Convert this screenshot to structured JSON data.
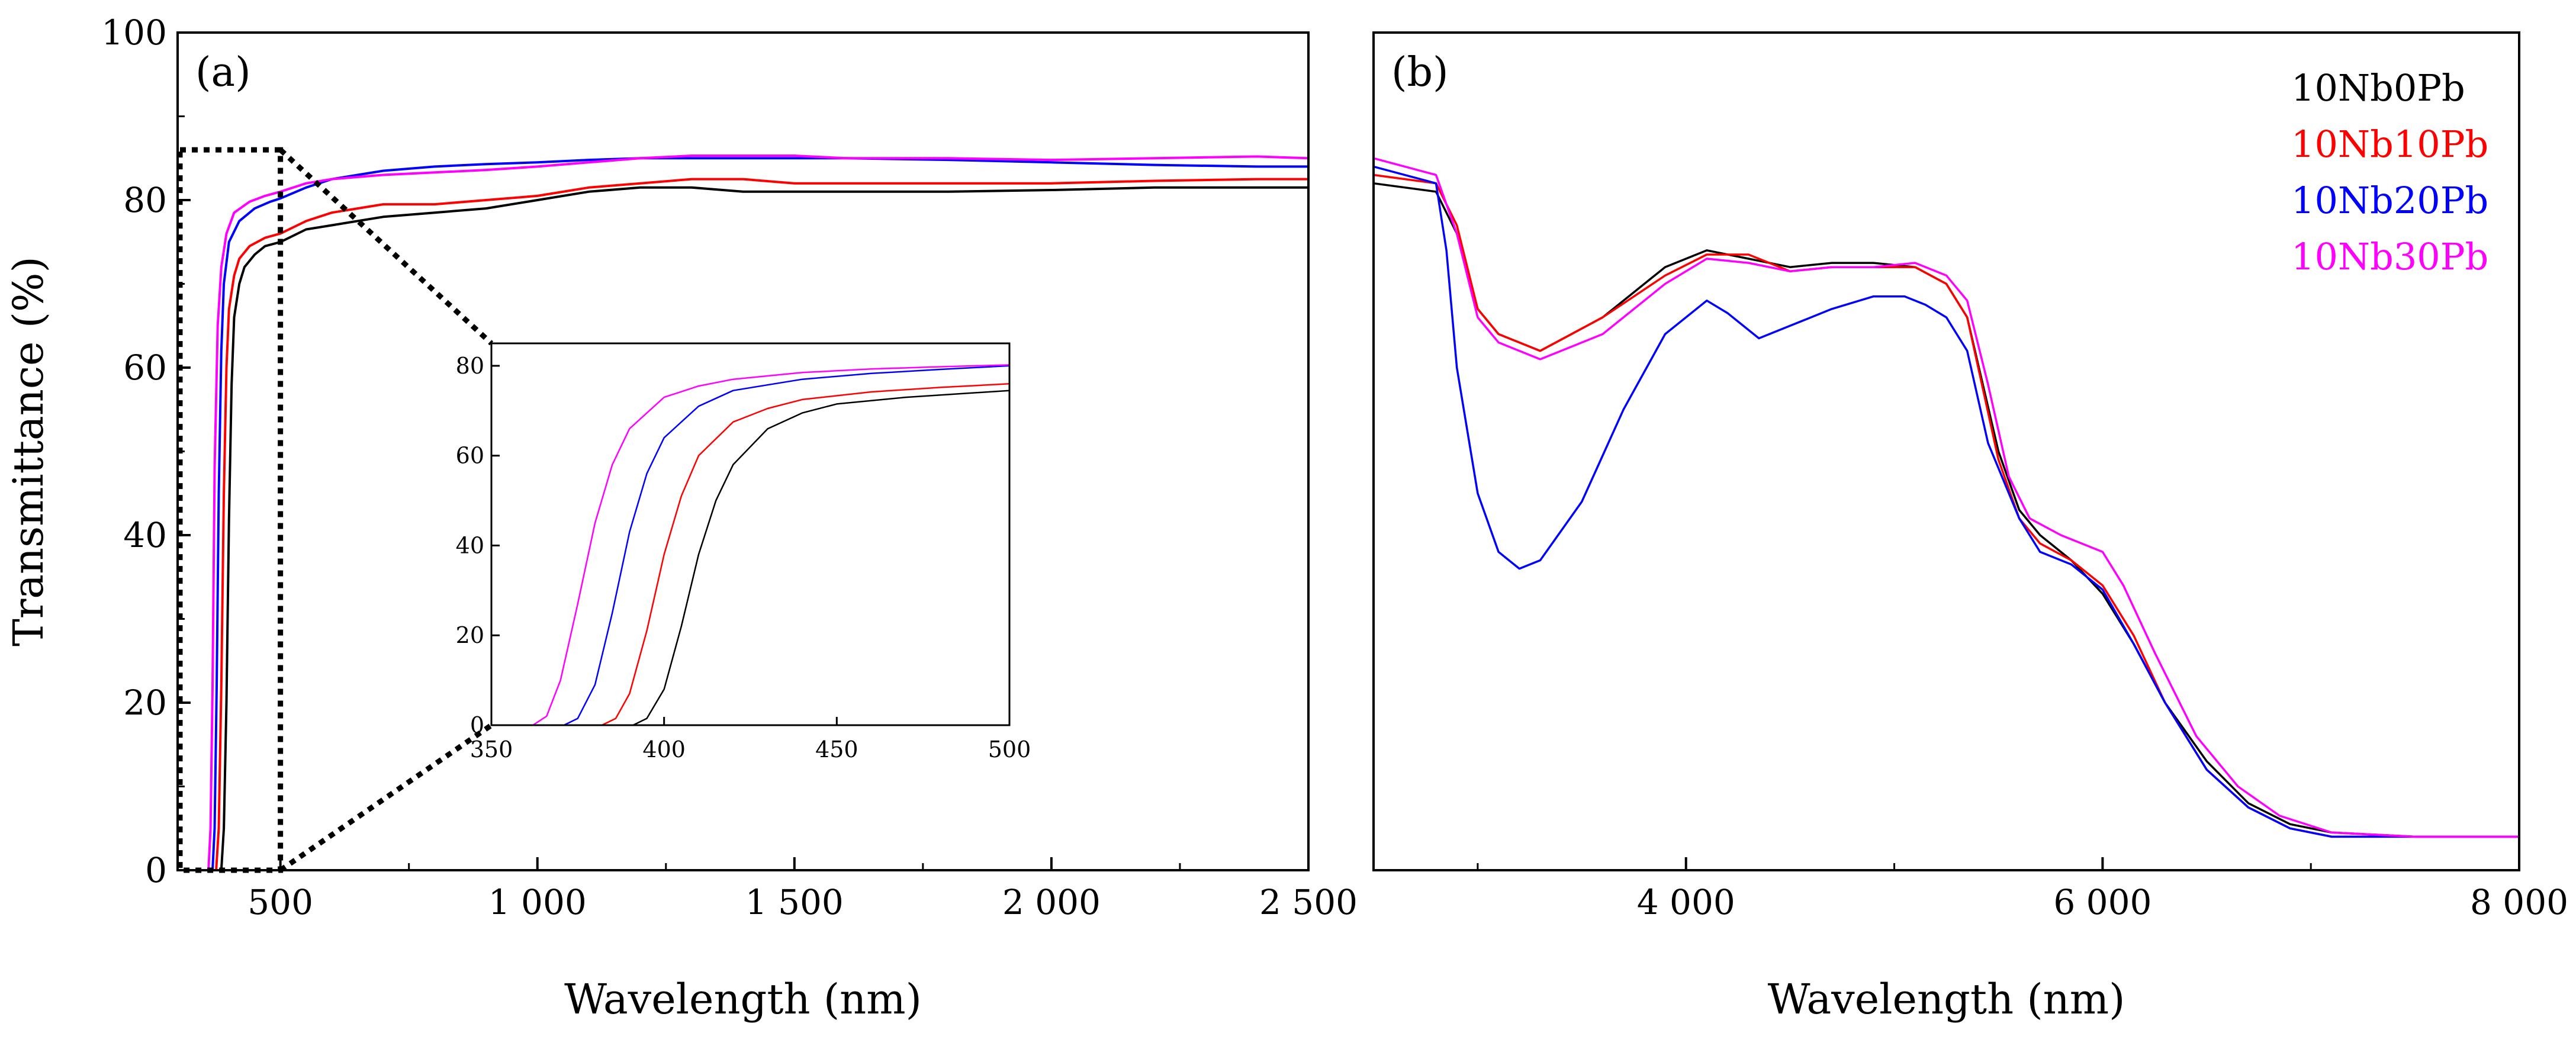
{
  "colors": {
    "10Nb0Pb": "#000000",
    "10Nb10Pb": "#ff0000",
    "10Nb20Pb": "#0000ff",
    "10Nb30Pb": "#ff00ff",
    "axis": "#000000"
  },
  "chart_data": [
    {
      "panel_label": "(a)",
      "type": "line",
      "xlabel": "Wavelength (nm)",
      "ylabel": "Transmittance (%)",
      "xlim": [
        300,
        2500
      ],
      "ylim": [
        0,
        100
      ],
      "x_ticks": [
        500,
        1000,
        1500,
        2000,
        2500
      ],
      "x_tick_labels": [
        "500",
        "1 000",
        "1 500",
        "2 000",
        "2 500"
      ],
      "y_ticks": [
        0,
        20,
        40,
        60,
        80,
        100
      ],
      "y_tick_labels": [
        "0",
        "20",
        "40",
        "60",
        "80",
        "100"
      ],
      "zoom_box": {
        "x": [
          300,
          500
        ],
        "y": [
          0,
          86
        ]
      },
      "series": [
        {
          "name": "10Nb0Pb",
          "color": "#000000",
          "x": [
            300,
            385,
            390,
            395,
            400,
            405,
            410,
            420,
            430,
            450,
            470,
            500,
            550,
            600,
            700,
            800,
            900,
            1000,
            1100,
            1200,
            1300,
            1400,
            1500,
            1600,
            1800,
            2000,
            2200,
            2400,
            2500
          ],
          "y": [
            0,
            0,
            5,
            20,
            42,
            58,
            66,
            70,
            72,
            73.5,
            74.5,
            75,
            76.5,
            77,
            78,
            78.5,
            79,
            80,
            81,
            81.5,
            81.5,
            81,
            81,
            81,
            81,
            81.2,
            81.5,
            81.5,
            81.5
          ]
        },
        {
          "name": "10Nb10Pb",
          "color": "#ff0000",
          "x": [
            300,
            375,
            380,
            385,
            390,
            395,
            400,
            410,
            420,
            440,
            470,
            500,
            550,
            600,
            700,
            800,
            900,
            1000,
            1100,
            1200,
            1300,
            1400,
            1500,
            1600,
            1800,
            2000,
            2200,
            2400,
            2500
          ],
          "y": [
            0,
            0,
            5,
            22,
            45,
            60,
            67,
            71,
            73,
            74.5,
            75.5,
            76,
            77.5,
            78.5,
            79.5,
            79.5,
            80,
            80.5,
            81.5,
            82,
            82.5,
            82.5,
            82,
            82,
            82,
            82,
            82.3,
            82.5,
            82.5
          ]
        },
        {
          "name": "10Nb20Pb",
          "color": "#0000ff",
          "x": [
            300,
            368,
            372,
            376,
            380,
            385,
            390,
            400,
            420,
            450,
            480,
            500,
            550,
            600,
            650,
            700,
            800,
            900,
            1000,
            1100,
            1200,
            1300,
            1400,
            1500,
            1600,
            1800,
            2000,
            2200,
            2400,
            2500
          ],
          "y": [
            0,
            0,
            5,
            22,
            45,
            62,
            70,
            75,
            77.5,
            79,
            79.8,
            80.2,
            81.5,
            82.5,
            83,
            83.5,
            84,
            84.3,
            84.5,
            84.8,
            85,
            85,
            85,
            85,
            85,
            84.8,
            84.5,
            84.2,
            84,
            84
          ]
        },
        {
          "name": "10Nb30Pb",
          "color": "#ff00ff",
          "x": [
            300,
            360,
            364,
            368,
            372,
            378,
            385,
            395,
            410,
            440,
            470,
            500,
            550,
            600,
            700,
            800,
            900,
            1000,
            1100,
            1200,
            1300,
            1400,
            1500,
            1600,
            1800,
            2000,
            2200,
            2400,
            2500
          ],
          "y": [
            0,
            0,
            5,
            22,
            48,
            65,
            72,
            76,
            78.5,
            79.8,
            80.5,
            81,
            82,
            82.5,
            83,
            83.3,
            83.6,
            84,
            84.5,
            85,
            85.3,
            85.3,
            85.3,
            85,
            85,
            84.8,
            85,
            85.2,
            85
          ]
        }
      ]
    },
    {
      "panel_label": "",
      "type": "line",
      "inset": true,
      "xlim": [
        350,
        500
      ],
      "ylim": [
        0,
        85
      ],
      "x_ticks": [
        350,
        400,
        450,
        500
      ],
      "x_tick_labels": [
        "350",
        "400",
        "450",
        "500"
      ],
      "y_ticks": [
        0,
        20,
        40,
        60,
        80
      ],
      "y_tick_labels": [
        "0",
        "20",
        "40",
        "60",
        "80"
      ],
      "series": [
        {
          "name": "10Nb0Pb",
          "color": "#000000",
          "x": [
            350,
            391,
            395,
            400,
            405,
            410,
            415,
            420,
            430,
            440,
            450,
            470,
            500
          ],
          "y": [
            0,
            0,
            1.5,
            8,
            22,
            38,
            50,
            58,
            66,
            69.5,
            71.5,
            73,
            74.5
          ]
        },
        {
          "name": "10Nb10Pb",
          "color": "#ff0000",
          "x": [
            350,
            382,
            386,
            390,
            395,
            400,
            405,
            410,
            420,
            430,
            440,
            460,
            480,
            500
          ],
          "y": [
            0,
            0,
            1.5,
            7,
            21,
            38,
            51,
            60,
            67.5,
            70.5,
            72.5,
            74.2,
            75.2,
            76
          ]
        },
        {
          "name": "10Nb20Pb",
          "color": "#0000ff",
          "x": [
            350,
            371,
            375,
            380,
            385,
            390,
            395,
            400,
            410,
            420,
            440,
            460,
            480,
            500
          ],
          "y": [
            0,
            0,
            1.5,
            9,
            25,
            43,
            56,
            64,
            71,
            74.5,
            77,
            78.3,
            79.2,
            80
          ]
        },
        {
          "name": "10Nb30Pb",
          "color": "#ff00ff",
          "x": [
            350,
            362,
            366,
            370,
            375,
            380,
            385,
            390,
            400,
            410,
            420,
            440,
            460,
            480,
            500
          ],
          "y": [
            0,
            0,
            2,
            10,
            27,
            45,
            58,
            66,
            73,
            75.5,
            77,
            78.5,
            79.3,
            79.8,
            80.2
          ]
        }
      ]
    },
    {
      "panel_label": "(b)",
      "type": "line",
      "xlabel": "Wavelength (nm)",
      "ylabel": "",
      "xlim": [
        2500,
        8000
      ],
      "ylim": [
        0,
        1
      ],
      "x_ticks": [
        4000,
        6000,
        8000
      ],
      "x_tick_labels": [
        "4 000",
        "6 000",
        "8 000"
      ],
      "minor_x_ticks": [
        3000,
        5000,
        7000
      ],
      "y_ticks": [],
      "legend": {
        "position": "top-right",
        "entries": [
          "10Nb0Pb",
          "10Nb10Pb",
          "10Nb20Pb",
          "10Nb30Pb"
        ]
      },
      "series": [
        {
          "name": "10Nb0Pb",
          "color": "#000000",
          "x": [
            2500,
            2800,
            2900,
            3000,
            3100,
            3300,
            3600,
            3900,
            4100,
            4300,
            4500,
            4700,
            4900,
            5100,
            5250,
            5350,
            5500,
            5600,
            5700,
            5850,
            6000,
            6150,
            6300,
            6500,
            6700,
            6900,
            7100,
            7500,
            8000
          ],
          "y": [
            0.82,
            0.81,
            0.76,
            0.67,
            0.64,
            0.62,
            0.66,
            0.72,
            0.74,
            0.73,
            0.72,
            0.725,
            0.725,
            0.72,
            0.7,
            0.66,
            0.5,
            0.43,
            0.4,
            0.37,
            0.33,
            0.27,
            0.2,
            0.13,
            0.08,
            0.055,
            0.045,
            0.04,
            0.04
          ]
        },
        {
          "name": "10Nb10Pb",
          "color": "#ff0000",
          "x": [
            2500,
            2800,
            2900,
            3000,
            3100,
            3300,
            3600,
            3900,
            4100,
            4300,
            4500,
            4700,
            4900,
            5100,
            5250,
            5350,
            5500,
            5600,
            5700,
            5850,
            6000,
            6150,
            6300,
            6500,
            6700,
            6900,
            7100,
            7500,
            8000
          ],
          "y": [
            0.83,
            0.82,
            0.77,
            0.67,
            0.64,
            0.62,
            0.66,
            0.71,
            0.735,
            0.735,
            0.715,
            0.72,
            0.72,
            0.72,
            0.7,
            0.66,
            0.49,
            0.42,
            0.39,
            0.37,
            0.34,
            0.28,
            0.2,
            0.12,
            0.075,
            0.05,
            0.04,
            0.04,
            0.04
          ]
        },
        {
          "name": "10Nb20Pb",
          "color": "#0000ff",
          "x": [
            2500,
            2800,
            2850,
            2900,
            3000,
            3100,
            3200,
            3300,
            3500,
            3700,
            3900,
            4100,
            4200,
            4350,
            4500,
            4700,
            4900,
            5050,
            5150,
            5250,
            5350,
            5450,
            5600,
            5700,
            5850,
            6000,
            6150,
            6300,
            6500,
            6700,
            6900,
            7100,
            7500,
            8000
          ],
          "y": [
            0.84,
            0.82,
            0.74,
            0.6,
            0.45,
            0.38,
            0.36,
            0.37,
            0.44,
            0.55,
            0.64,
            0.68,
            0.665,
            0.635,
            0.65,
            0.67,
            0.685,
            0.685,
            0.675,
            0.66,
            0.62,
            0.51,
            0.42,
            0.38,
            0.365,
            0.335,
            0.27,
            0.2,
            0.12,
            0.075,
            0.05,
            0.04,
            0.04,
            0.04
          ]
        },
        {
          "name": "10Nb30Pb",
          "color": "#ff00ff",
          "x": [
            2500,
            2800,
            2900,
            3000,
            3100,
            3300,
            3600,
            3900,
            4100,
            4300,
            4500,
            4700,
            4900,
            5100,
            5250,
            5350,
            5450,
            5550,
            5650,
            5800,
            6000,
            6100,
            6250,
            6450,
            6650,
            6850,
            7100,
            7500,
            8000
          ],
          "y": [
            0.85,
            0.83,
            0.76,
            0.66,
            0.63,
            0.61,
            0.64,
            0.7,
            0.73,
            0.725,
            0.715,
            0.72,
            0.72,
            0.725,
            0.71,
            0.68,
            0.58,
            0.47,
            0.42,
            0.4,
            0.38,
            0.34,
            0.26,
            0.16,
            0.1,
            0.065,
            0.045,
            0.04,
            0.04
          ]
        }
      ]
    }
  ]
}
